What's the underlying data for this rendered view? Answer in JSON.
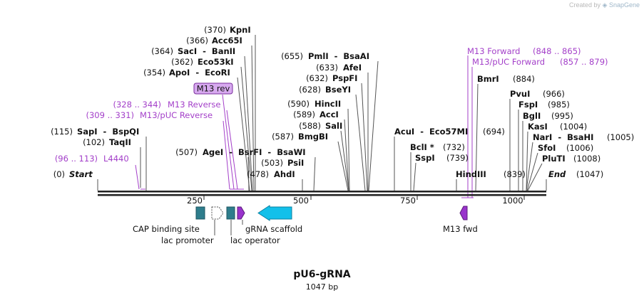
{
  "watermark": {
    "prefix": "Created by",
    "brand": "SnapGene"
  },
  "plasmid": {
    "name": "pU6-gRNA",
    "length_label": "1047 bp"
  },
  "ruler_ticks": [
    "250",
    "500",
    "750",
    "1000"
  ],
  "sites": [
    {
      "pos": "(370)",
      "name": "KpnI"
    },
    {
      "pos": "(366)",
      "name": "Acc65I"
    },
    {
      "pos": "(364)",
      "name": "SacI  -  BanII"
    },
    {
      "pos": "(362)",
      "name": "Eco53kI"
    },
    {
      "pos": "(354)",
      "name": "ApoI  -  EcoRI"
    },
    {
      "pos": "(115)",
      "name": "SapI  -  BspQI"
    },
    {
      "pos": "(102)",
      "name": "TaqII"
    },
    {
      "pos": "(0)",
      "name": "Start"
    },
    {
      "pos": "(507)",
      "name": "AgeI  -  BsrFI  -  BsaWI"
    },
    {
      "pos": "(503)",
      "name": "PsiI"
    },
    {
      "pos": "(478)",
      "name": "AhdI"
    },
    {
      "pos": "(655)",
      "name": "PmlI  -  BsaAI"
    },
    {
      "pos": "(633)",
      "name": "AfeI"
    },
    {
      "pos": "(632)",
      "name": "PspFI"
    },
    {
      "pos": "(628)",
      "name": "BseYI"
    },
    {
      "pos": "(590)",
      "name": "HincII"
    },
    {
      "pos": "(589)",
      "name": "AccI"
    },
    {
      "pos": "(588)",
      "name": "SalI"
    },
    {
      "pos": "(587)",
      "name": "BmgBI"
    },
    {
      "pos": "(694)",
      "name": "AcuI  -  Eco57MI"
    },
    {
      "pos": "(732)",
      "name": "BclI *"
    },
    {
      "pos": "(739)",
      "name": "SspI"
    },
    {
      "pos": "(839)",
      "name": "HindIII"
    },
    {
      "pos": "(884)",
      "name": "BmrI"
    },
    {
      "pos": "(966)",
      "name": "PvuI"
    },
    {
      "pos": "(985)",
      "name": "FspI"
    },
    {
      "pos": "(995)",
      "name": "BglI"
    },
    {
      "pos": "(1004)",
      "name": "KasI"
    },
    {
      "pos": "(1005)",
      "name": "NarI  -  BsaHI"
    },
    {
      "pos": "(1006)",
      "name": "SfoI"
    },
    {
      "pos": "(1008)",
      "name": "PluTI"
    },
    {
      "pos": "(1047)",
      "name": "End"
    }
  ],
  "primers": [
    {
      "pos": "(96 .. 113)",
      "name": "L4440"
    },
    {
      "pos": "(328 .. 344)",
      "name": "M13 Reverse"
    },
    {
      "pos": "(309 .. 331)",
      "name": "M13/pUC Reverse"
    },
    {
      "pos": "(848 .. 865)",
      "name": "M13 Forward"
    },
    {
      "pos": "(857 .. 879)",
      "name": "M13/pUC Forward"
    }
  ],
  "m13rev_box": "M13 rev",
  "features": [
    {
      "name": "CAP binding site",
      "color": "#2e7d8c"
    },
    {
      "name": "lac promoter",
      "color": "#ffffff"
    },
    {
      "name": "lac operator",
      "color": "#2e7d8c"
    },
    {
      "name": "gRNA scaffold",
      "color": "#12c0ea"
    },
    {
      "name": "M13 fwd",
      "color": "#9933cc"
    }
  ],
  "colors": {
    "primer": "#a33fc9",
    "backbone": "#222222"
  }
}
